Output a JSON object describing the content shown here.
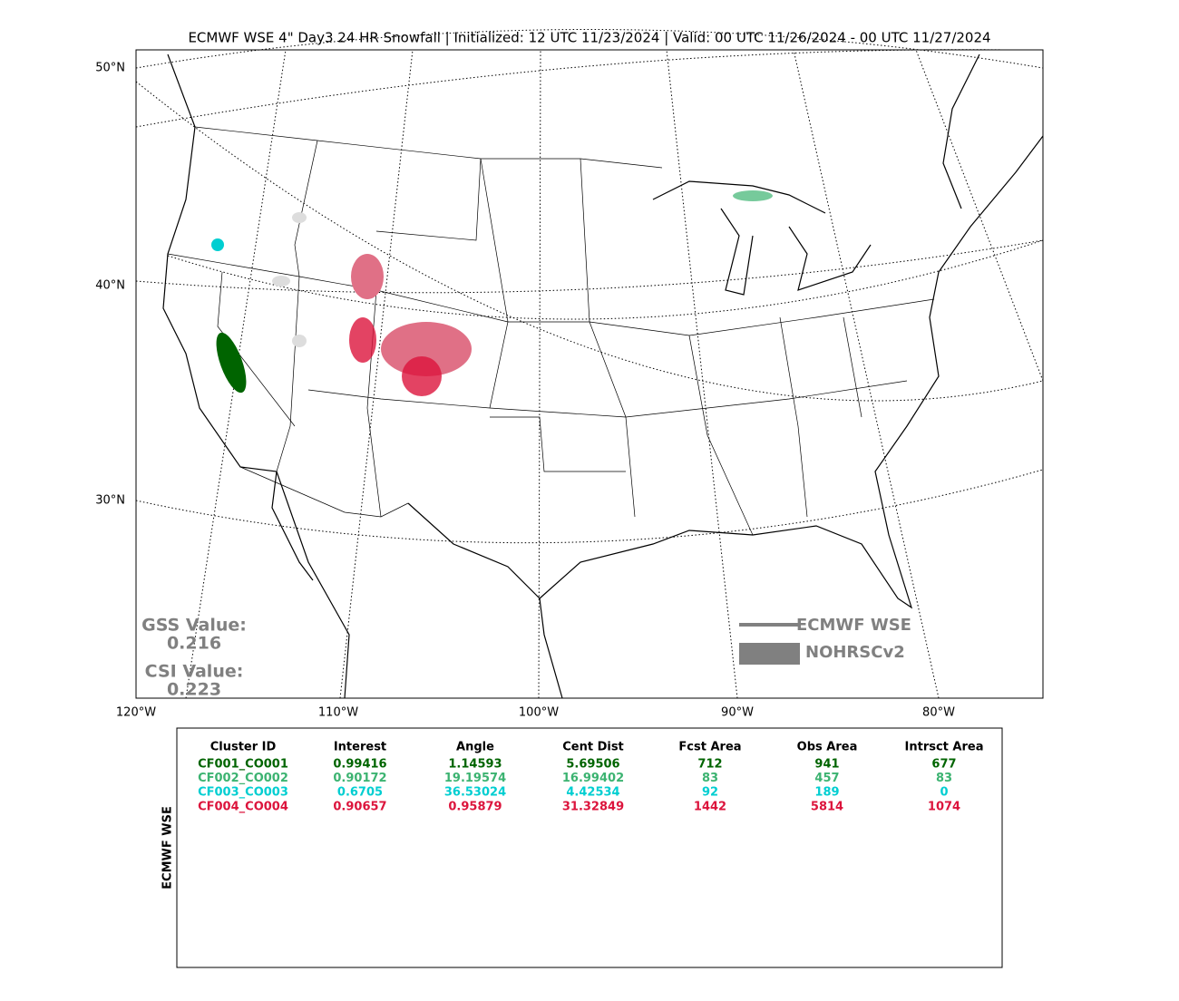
{
  "title": "ECMWF WSE 4\" Day3 24 HR Snowfall | Initialized: 12 UTC 11/23/2024 | Valid: 00 UTC 11/26/2024 - 00 UTC 11/27/2024",
  "map": {
    "lat_labels": [
      "50°N",
      "40°N",
      "30°N"
    ],
    "lon_labels": [
      "120°W",
      "110°W",
      "100°W",
      "90°W",
      "80°W"
    ],
    "gss_label": "GSS Value:",
    "gss_value": "0.216",
    "csi_label": "CSI Value:",
    "csi_value": "0.223",
    "legend": [
      "ECMWF WSE",
      "NOHRSCv2"
    ]
  },
  "table": {
    "side_label": "ECMWF WSE",
    "columns": [
      "Cluster ID",
      "Interest",
      "Angle",
      "Cent Dist",
      "Fcst Area",
      "Obs Area",
      "Intrsct Area"
    ],
    "row_colors": [
      "#006400",
      "#3cb371",
      "#00ced1",
      "#dc143c"
    ],
    "rows": [
      [
        "CF001_CO001",
        "0.99416",
        "1.14593",
        "5.69506",
        "712",
        "941",
        "677"
      ],
      [
        "CF002_CO002",
        "0.90172",
        "19.19574",
        "16.99402",
        "83",
        "457",
        "83"
      ],
      [
        "CF003_CO003",
        "0.6705",
        "36.53024",
        "4.42534",
        "92",
        "189",
        "0"
      ],
      [
        "CF004_CO004",
        "0.90657",
        "0.95879",
        "31.32849",
        "1442",
        "5814",
        "1074"
      ]
    ]
  }
}
